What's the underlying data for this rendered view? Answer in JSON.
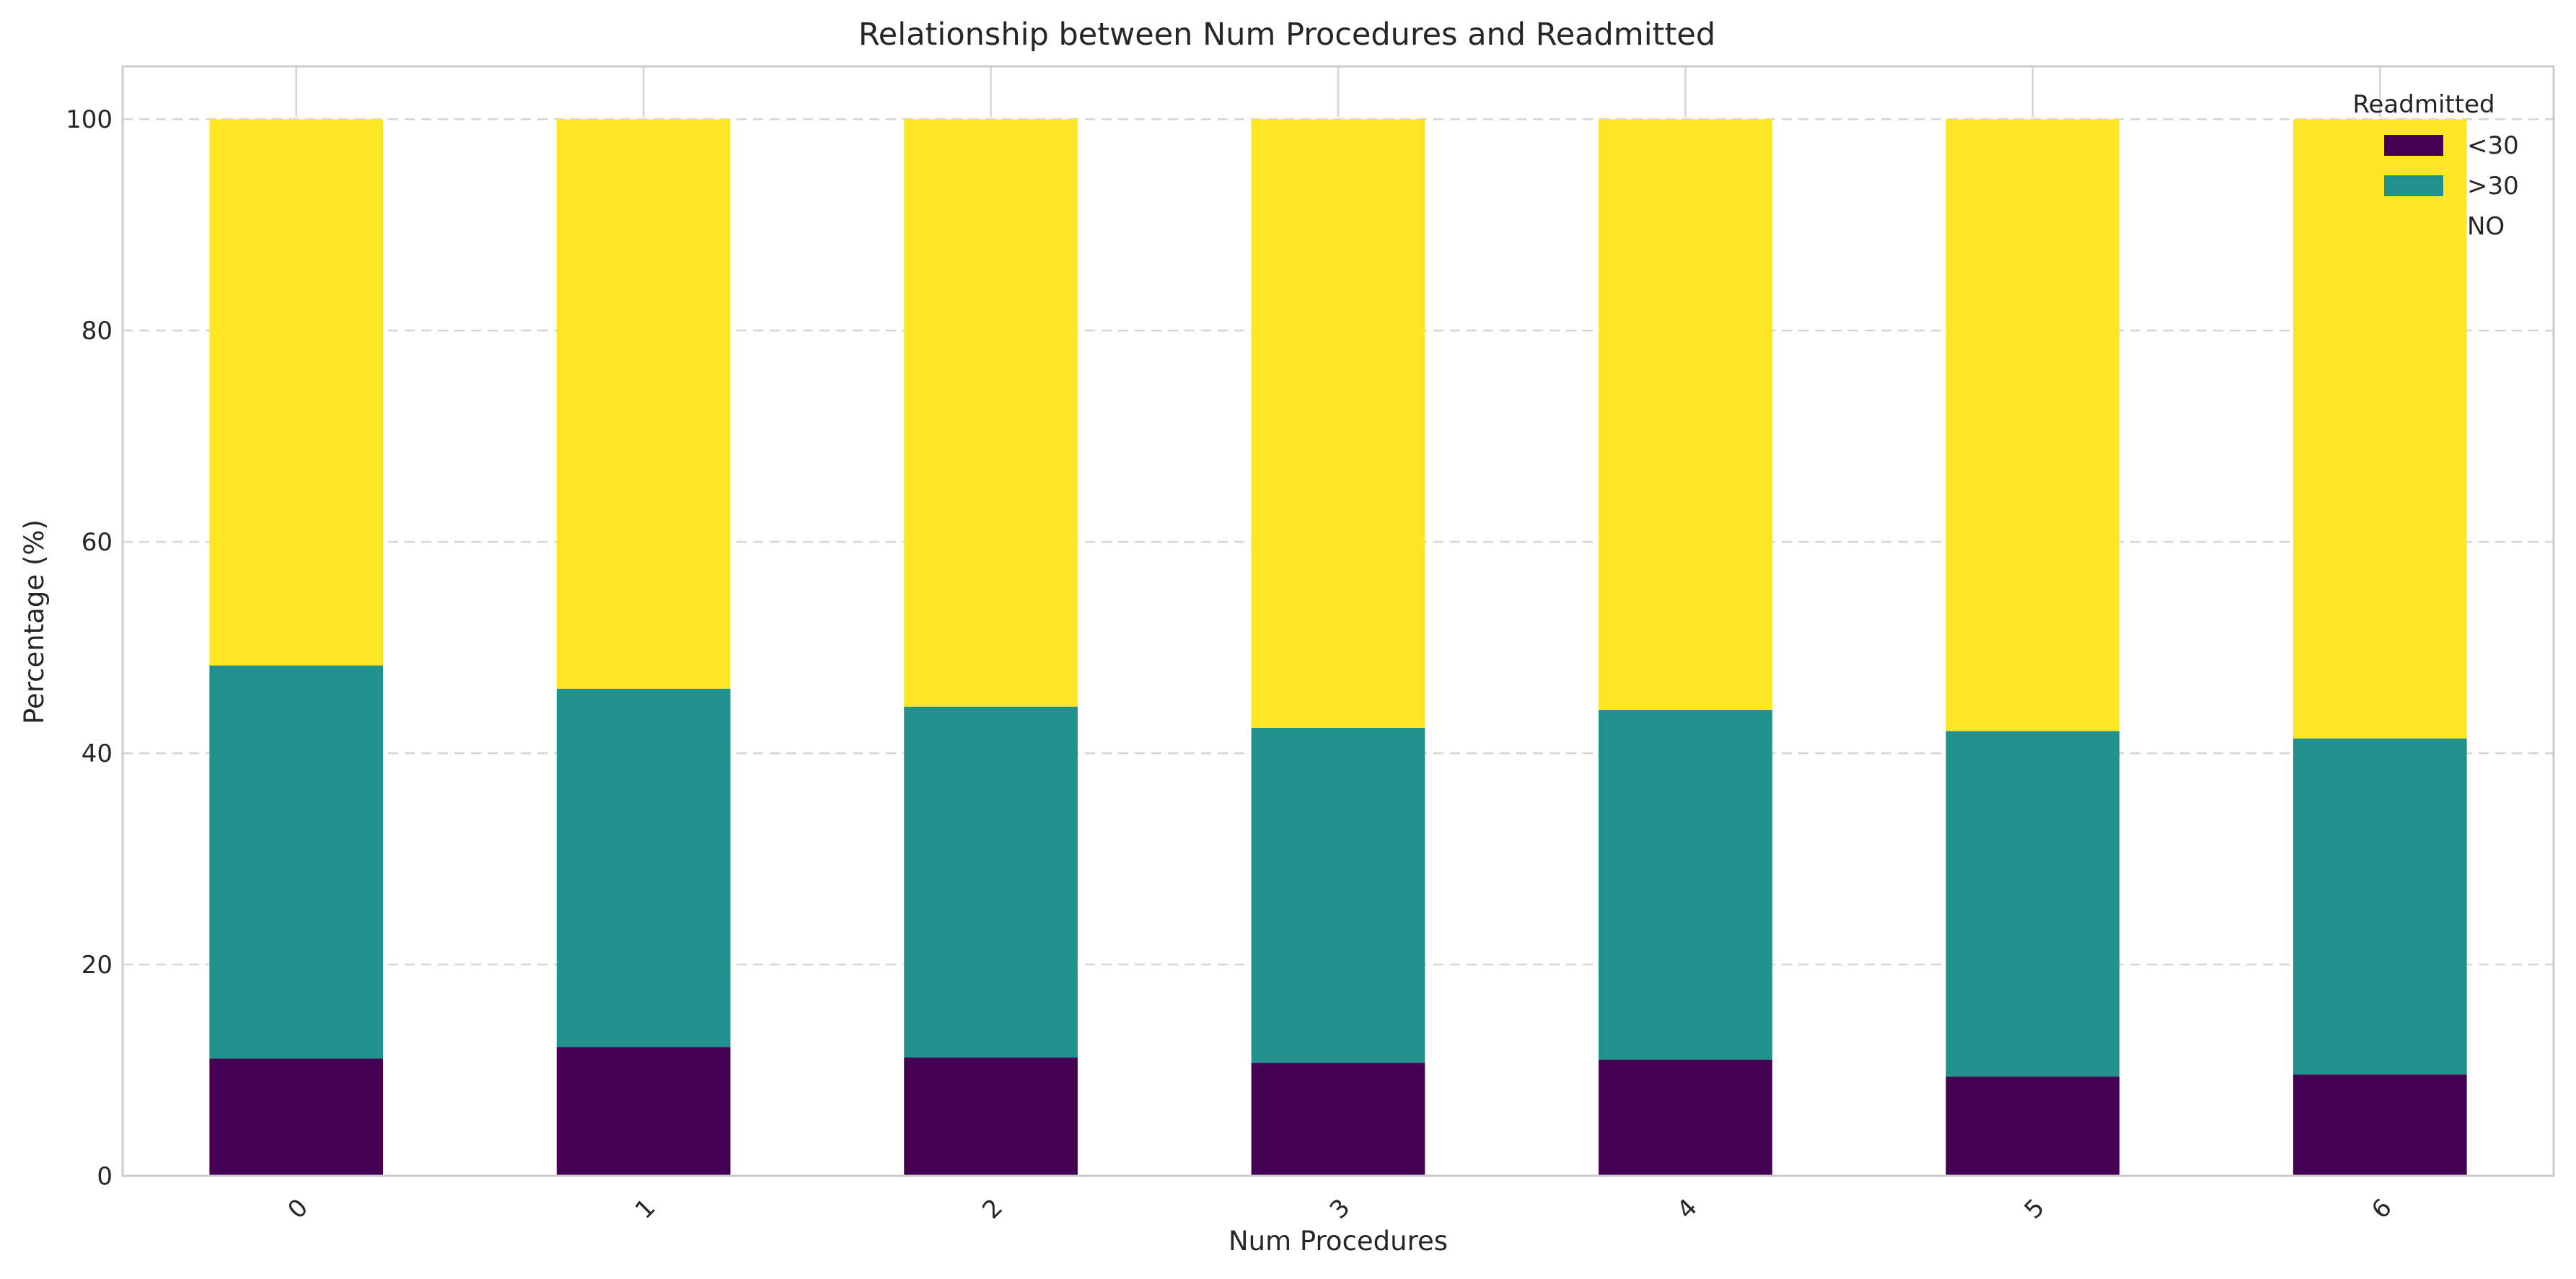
{
  "chart_data": {
    "type": "bar",
    "stacked": true,
    "title": "Relationship between Num Procedures and Readmitted",
    "xlabel": "Num Procedures",
    "ylabel": "Percentage (%)",
    "ylim": [
      0,
      105
    ],
    "yticks": [
      0,
      20,
      40,
      60,
      80,
      100
    ],
    "categories": [
      "0",
      "1",
      "2",
      "3",
      "4",
      "5",
      "6"
    ],
    "grid": "y-dashed",
    "legend": {
      "title": "Readmitted",
      "placement": "top-right"
    },
    "series": [
      {
        "name": "<30",
        "color": "#440154",
        "values": [
          11.1,
          12.2,
          11.2,
          10.7,
          11.0,
          9.4,
          9.6
        ]
      },
      {
        "name": ">30",
        "color": "#21918c",
        "values": [
          37.2,
          33.9,
          33.2,
          31.7,
          33.1,
          32.7,
          31.8
        ]
      },
      {
        "name": "NO",
        "color": "#fde725",
        "values": [
          51.7,
          53.9,
          55.6,
          57.6,
          55.9,
          57.9,
          58.6
        ]
      }
    ]
  }
}
